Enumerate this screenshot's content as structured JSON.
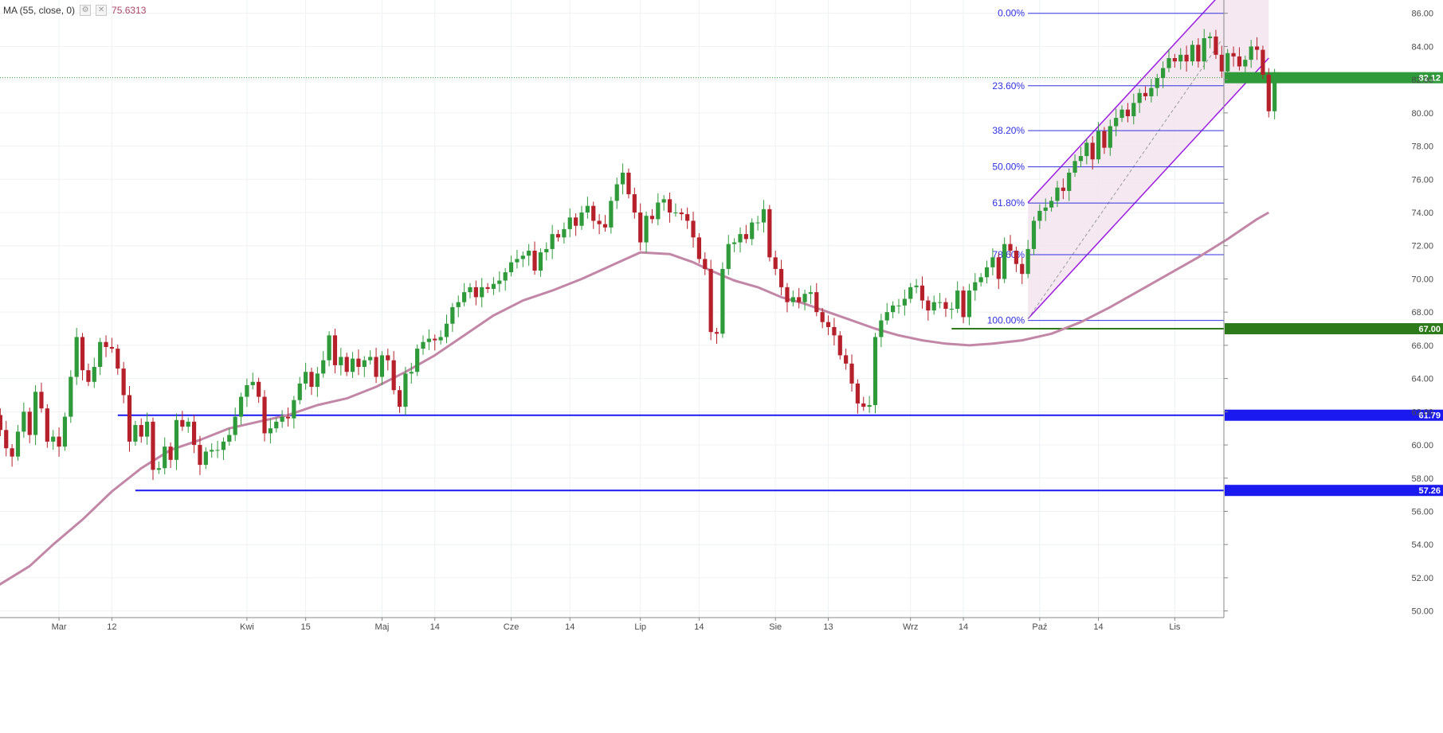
{
  "legend": {
    "indicator": "MA (55, close, 0)",
    "value": "75.6313",
    "settings_icon": "gear-icon",
    "close_icon": "close-icon"
  },
  "chart_data": {
    "type": "candlestick",
    "ylim": [
      49.6,
      86.8
    ],
    "price_ticks": [
      "86.00",
      "84.00",
      "82.00",
      "80.00",
      "78.00",
      "76.00",
      "74.00",
      "72.00",
      "70.00",
      "68.00",
      "66.00",
      "64.00",
      "62.00",
      "60.00",
      "58.00",
      "56.00",
      "54.00",
      "52.00",
      "50.00"
    ],
    "time_ticks": [
      {
        "i": 11,
        "label": "Mar"
      },
      {
        "i": 20,
        "label": "12"
      },
      {
        "i": 43,
        "label": "Kwi"
      },
      {
        "i": 53,
        "label": "15"
      },
      {
        "i": 66,
        "label": "Maj"
      },
      {
        "i": 75,
        "label": "14"
      },
      {
        "i": 88,
        "label": "Cze"
      },
      {
        "i": 98,
        "label": "14"
      },
      {
        "i": 110,
        "label": "Lip"
      },
      {
        "i": 120,
        "label": "14"
      },
      {
        "i": 133,
        "label": "Sie"
      },
      {
        "i": 142,
        "label": "13"
      },
      {
        "i": 156,
        "label": "Wrz"
      },
      {
        "i": 165,
        "label": "14"
      },
      {
        "i": 178,
        "label": "Paź"
      },
      {
        "i": 188,
        "label": "14"
      },
      {
        "i": 201,
        "label": "Lis"
      }
    ],
    "axis_start_index": 0,
    "candles_close": [
      61.8,
      60.9,
      59.8,
      59.3,
      60.8,
      62.0,
      60.6,
      63.2,
      62.2,
      60.2,
      60.5,
      59.9,
      61.7,
      64.1,
      66.5,
      64.5,
      63.8,
      64.7,
      66.2,
      65.9,
      65.8,
      64.6,
      63.0,
      60.2,
      61.2,
      60.5,
      61.4,
      58.5,
      58.6,
      59.9,
      59.1,
      61.5,
      61.1,
      61.4,
      60.0,
      58.8,
      59.6,
      59.7,
      59.7,
      60.2,
      60.6,
      61.7,
      62.9,
      63.6,
      63.8,
      62.9,
      60.7,
      61.0,
      61.4,
      61.7,
      61.6,
      62.7,
      63.7,
      64.4,
      63.5,
      64.3,
      65.1,
      66.6,
      64.8,
      65.3,
      64.4,
      65.2,
      64.7,
      65.1,
      65.3,
      64.1,
      65.4,
      65.1,
      63.3,
      62.3,
      64.3,
      64.4,
      65.8,
      66.2,
      66.4,
      66.3,
      66.5,
      67.3,
      68.3,
      68.6,
      69.2,
      69.5,
      68.9,
      69.5,
      69.4,
      69.7,
      69.9,
      70.4,
      71.0,
      71.2,
      71.4,
      71.7,
      70.5,
      71.6,
      71.8,
      72.7,
      72.5,
      73.0,
      73.7,
      73.2,
      74.0,
      74.4,
      73.5,
      73.3,
      73.1,
      74.7,
      75.7,
      76.4,
      75.1,
      74.0,
      72.2,
      73.8,
      73.6,
      74.6,
      74.8,
      74.0,
      74.0,
      73.9,
      73.5,
      72.5,
      71.2,
      70.6,
      66.8,
      66.7,
      70.6,
      72.1,
      72.2,
      72.7,
      72.4,
      73.4,
      73.4,
      74.2,
      71.3,
      70.6,
      69.5,
      68.6,
      68.9,
      68.6,
      69.1,
      69.2,
      68.0,
      67.4,
      67.1,
      66.6,
      65.4,
      64.9,
      63.7,
      62.5,
      62.3,
      62.4,
      66.5,
      67.5,
      68.0,
      68.4,
      68.4,
      68.8,
      69.5,
      69.6,
      68.7,
      68.1,
      68.6,
      68.6,
      68.2,
      68.2,
      69.3,
      67.7,
      69.3,
      69.8,
      70.1,
      70.7,
      71.3,
      70.0,
      72.1,
      71.7,
      70.9,
      70.3,
      71.8,
      73.5,
      74.1,
      74.3,
      74.7,
      75.5,
      75.3,
      76.4,
      77.1,
      77.4,
      78.2,
      77.2,
      78.9,
      77.9,
      79.2,
      79.7,
      80.2,
      79.8,
      80.6,
      81.2,
      81.0,
      81.5,
      82.1,
      82.7,
      83.3,
      83.1,
      83.5,
      83.1,
      84.1,
      83.1,
      84.5,
      84.6,
      83.5,
      82.5,
      83.6,
      83.4,
      82.8,
      83.2,
      84.0,
      83.8,
      82.3,
      80.1,
      82.1
    ],
    "current_price": {
      "value": "82.12",
      "y": 82.12,
      "color": "#2f9a3a"
    },
    "horizontal_levels": [
      {
        "y": 61.79,
        "label": "61.79",
        "color": "#1a1af0",
        "start_index": 21
      },
      {
        "y": 57.26,
        "label": "57.26",
        "color": "#1a1af0",
        "start_index": 24
      },
      {
        "y": 67.0,
        "label": "67.00",
        "color": "#2d7a1a",
        "start_index": 163
      }
    ],
    "fibonacci": {
      "start_index": 176,
      "low": 67.5,
      "high": 86.0,
      "levels": [
        {
          "ratio": 0.0,
          "label": "0.00%"
        },
        {
          "ratio": 0.236,
          "label": "23.60%"
        },
        {
          "ratio": 0.382,
          "label": "38.20%"
        },
        {
          "ratio": 0.5,
          "label": "50.00%"
        },
        {
          "ratio": 0.618,
          "label": "61.80%"
        },
        {
          "ratio": 0.786,
          "label": "78.60%"
        },
        {
          "ratio": 1.0,
          "label": "100.00%"
        }
      ],
      "color": "#3030e0"
    },
    "channel": {
      "color": "#9b1be0",
      "fill": "#f5e4ee",
      "lower": [
        [
          176,
          67.6
        ],
        [
          217,
          83.3
        ]
      ],
      "upper": [
        [
          176,
          74.6
        ],
        [
          217,
          90.3
        ]
      ]
    },
    "ma_series": {
      "name": "MA (55, close, 0)",
      "color": "#c287a6",
      "points": [
        [
          0,
          51.4
        ],
        [
          6,
          52.7
        ],
        [
          10,
          54.0
        ],
        [
          15,
          55.5
        ],
        [
          20,
          57.2
        ],
        [
          25,
          58.6
        ],
        [
          30,
          59.7
        ],
        [
          35,
          60.3
        ],
        [
          40,
          61.0
        ],
        [
          45,
          61.4
        ],
        [
          50,
          61.8
        ],
        [
          55,
          62.4
        ],
        [
          60,
          62.8
        ],
        [
          65,
          63.5
        ],
        [
          70,
          64.4
        ],
        [
          75,
          65.4
        ],
        [
          80,
          66.6
        ],
        [
          85,
          67.8
        ],
        [
          90,
          68.7
        ],
        [
          95,
          69.3
        ],
        [
          100,
          70.0
        ],
        [
          105,
          70.8
        ],
        [
          110,
          71.6
        ],
        [
          115,
          71.5
        ],
        [
          119,
          71.0
        ],
        [
          122,
          70.5
        ],
        [
          126,
          69.9
        ],
        [
          130,
          69.5
        ],
        [
          134,
          68.9
        ],
        [
          138,
          68.5
        ],
        [
          142,
          68.0
        ],
        [
          146,
          67.5
        ],
        [
          150,
          67.0
        ],
        [
          154,
          66.6
        ],
        [
          158,
          66.3
        ],
        [
          162,
          66.1
        ],
        [
          166,
          66.0
        ],
        [
          170,
          66.1
        ],
        [
          175,
          66.3
        ],
        [
          180,
          66.7
        ],
        [
          185,
          67.4
        ],
        [
          190,
          68.3
        ],
        [
          195,
          69.3
        ],
        [
          200,
          70.3
        ],
        [
          205,
          71.3
        ],
        [
          210,
          72.4
        ],
        [
          215,
          73.6
        ],
        [
          217,
          74.0
        ]
      ]
    },
    "colors": {
      "up": "#2f9a3a",
      "down": "#b5202a",
      "grid": "#eef1f4",
      "axis_text": "#4a4a4a"
    }
  }
}
